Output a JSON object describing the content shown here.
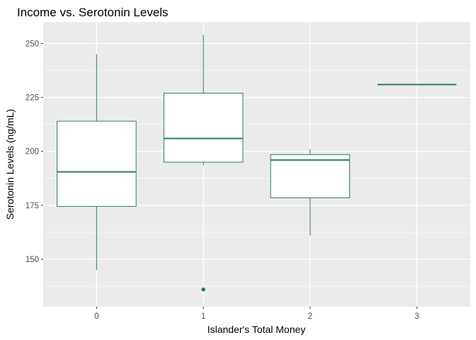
{
  "chart_data": {
    "type": "boxplot",
    "title": "Income vs. Serotonin Levels",
    "xlabel": "Islander's Total Money",
    "ylabel": "Serotonin Levels (ng/mL)",
    "categories": [
      "0",
      "1",
      "2",
      "3"
    ],
    "ylim": [
      128,
      260
    ],
    "yticks": [
      150,
      175,
      200,
      225,
      250
    ],
    "y_minor_ticks": [
      137.5,
      162.5,
      187.5,
      212.5,
      237.5
    ],
    "grid": true,
    "panel_color": "#ebebeb",
    "box_color": "#2e7d5b",
    "boxes": [
      {
        "category": "0",
        "whisker_low": 145,
        "q1": 174.5,
        "median": 190.5,
        "q3": 214,
        "whisker_high": 245,
        "outliers": []
      },
      {
        "category": "1",
        "whisker_low": 193.5,
        "q1": 195,
        "median": 206,
        "q3": 227,
        "whisker_high": 254,
        "outliers": [
          136
        ]
      },
      {
        "category": "2",
        "whisker_low": 161,
        "q1": 178.5,
        "median": 196,
        "q3": 198.5,
        "whisker_high": 201,
        "outliers": []
      },
      {
        "category": "3",
        "whisker_low": 231,
        "q1": 231,
        "median": 231,
        "q3": 231,
        "whisker_high": 231,
        "outliers": []
      }
    ]
  }
}
